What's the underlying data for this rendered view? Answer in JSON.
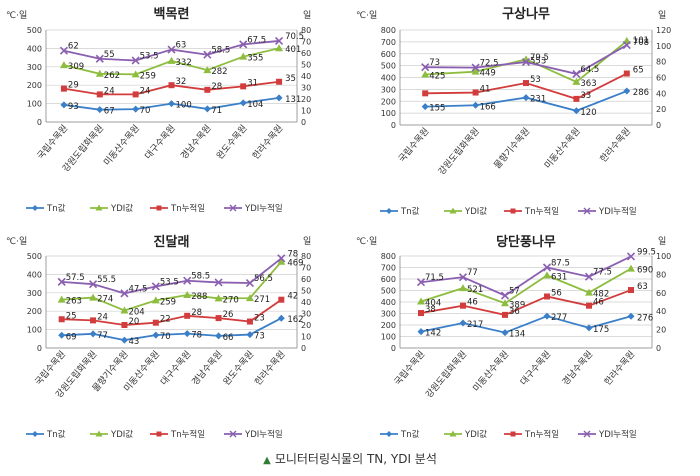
{
  "caption": "모니터터링식물의 TN, YDI 분석",
  "chart_data": [
    {
      "type": "line",
      "title": "백목련",
      "y1label": "℃·일",
      "y2label": "일",
      "y1lim": [
        0,
        500
      ],
      "y2lim": [
        0,
        80
      ],
      "y1ticks": [
        0,
        100,
        200,
        300,
        400,
        500
      ],
      "y2ticks": [
        0,
        10,
        20,
        30,
        40,
        50,
        60,
        70,
        80
      ],
      "categories": [
        "국립수목원",
        "강원도립화목원",
        "미동산수목원",
        "대구수목원",
        "경남수목원",
        "완도수목원",
        "한라수목원"
      ],
      "series": [
        {
          "name": "Tn값",
          "axis": "left",
          "color": "#3a7fc8",
          "marker": "diamond",
          "values": [
            93,
            67,
            70,
            100,
            71,
            104,
            131
          ]
        },
        {
          "name": "YDI값",
          "axis": "left",
          "color": "#8dbd3e",
          "marker": "triangle",
          "values": [
            309,
            262,
            259,
            332,
            282,
            355,
            401
          ]
        },
        {
          "name": "Tn누적일",
          "axis": "right",
          "color": "#d23c3c",
          "marker": "square",
          "values": [
            29,
            24,
            24,
            32,
            28,
            31,
            35
          ]
        },
        {
          "name": "YDI누적일",
          "axis": "right",
          "color": "#8a5fb0",
          "marker": "x",
          "values": [
            62,
            55,
            53.5,
            63,
            58.5,
            67.5,
            70.5
          ]
        }
      ],
      "labels": [
        [
          "93",
          "67",
          "70",
          "100",
          "71",
          "104",
          "131"
        ],
        [
          "309",
          "262",
          "259",
          "332",
          "282",
          "355",
          "401"
        ],
        [
          "29",
          "24",
          "24",
          "32",
          "28",
          "31",
          "35"
        ],
        [
          "62",
          "55",
          "53.5",
          "63",
          "58.5",
          "67.5",
          "70.5"
        ]
      ]
    },
    {
      "type": "line",
      "title": "구상나무",
      "y1label": "℃·일",
      "y2label": "일",
      "y1lim": [
        0,
        800
      ],
      "y2lim": [
        0,
        120
      ],
      "y1ticks": [
        0,
        100,
        200,
        300,
        400,
        500,
        600,
        700,
        800
      ],
      "y2ticks": [
        0,
        20,
        40,
        60,
        80,
        100,
        120
      ],
      "categories": [
        "국립수목원",
        "강원도립화목원",
        "물향기수목원",
        "미동산수목원",
        "한라수목원"
      ],
      "series": [
        {
          "name": "Tn값",
          "axis": "left",
          "color": "#3a7fc8",
          "marker": "diamond",
          "values": [
            155,
            166,
            231,
            120,
            286
          ]
        },
        {
          "name": "YDI값",
          "axis": "left",
          "color": "#8dbd3e",
          "marker": "triangle",
          "values": [
            425,
            449,
            553,
            363,
            708
          ]
        },
        {
          "name": "Tn누적일",
          "axis": "right",
          "color": "#d23c3c",
          "marker": "square",
          "values": [
            40,
            41,
            53,
            33,
            65
          ]
        },
        {
          "name": "YDI누적일",
          "axis": "right",
          "color": "#8a5fb0",
          "marker": "x",
          "values": [
            73,
            72.5,
            79.5,
            64.5,
            101
          ]
        }
      ],
      "labels": [
        [
          "155",
          "166",
          "231",
          "120",
          "286"
        ],
        [
          "425",
          "449",
          "553",
          "363",
          "708"
        ],
        [
          "",
          "41",
          "53",
          "33",
          "65"
        ],
        [
          "73",
          "72.5",
          "79.5",
          "64.5",
          "101"
        ]
      ]
    },
    {
      "type": "line",
      "title": "진달래",
      "y1label": "℃·일",
      "y2label": "일",
      "y1lim": [
        0,
        500
      ],
      "y2lim": [
        0,
        80
      ],
      "y1ticks": [
        0,
        100,
        200,
        300,
        400,
        500
      ],
      "y2ticks": [
        0,
        10,
        20,
        30,
        40,
        50,
        60,
        70,
        80
      ],
      "categories": [
        "국립수목원",
        "강원도립화목원",
        "물향기수목원",
        "미동산수목원",
        "대구수목원",
        "경남수목원",
        "완도수목원",
        "한라수목원"
      ],
      "series": [
        {
          "name": "Tn값",
          "axis": "left",
          "color": "#3a7fc8",
          "marker": "diamond",
          "values": [
            69,
            77,
            43,
            70,
            78,
            66,
            73,
            162
          ]
        },
        {
          "name": "YDI값",
          "axis": "left",
          "color": "#8dbd3e",
          "marker": "triangle",
          "values": [
            263,
            274,
            204,
            259,
            288,
            270,
            271,
            469
          ]
        },
        {
          "name": "Tn누적일",
          "axis": "right",
          "color": "#d23c3c",
          "marker": "square",
          "values": [
            25,
            24,
            20,
            22,
            28,
            26,
            23,
            42
          ]
        },
        {
          "name": "YDI누적일",
          "axis": "right",
          "color": "#8a5fb0",
          "marker": "x",
          "values": [
            57.5,
            55.5,
            47.5,
            53.5,
            58.5,
            57,
            56.5,
            78
          ]
        }
      ],
      "labels": [
        [
          "69",
          "77",
          "43",
          "70",
          "78",
          "66",
          "73",
          "162"
        ],
        [
          "263",
          "274",
          "204",
          "259",
          "288",
          "270",
          "271",
          "469"
        ],
        [
          "25",
          "24",
          "20",
          "22",
          "28",
          "26",
          "23",
          "42"
        ],
        [
          "57.5",
          "55.5",
          "47.5",
          "53.5",
          "58.5",
          "",
          "56.5",
          "78"
        ]
      ]
    },
    {
      "type": "line",
      "title": "당단풍나무",
      "y1label": "℃·일",
      "y2label": "일",
      "y1lim": [
        0,
        800
      ],
      "y2lim": [
        0,
        100
      ],
      "y1ticks": [
        0,
        100,
        200,
        300,
        400,
        500,
        600,
        700,
        800
      ],
      "y2ticks": [
        0,
        20,
        40,
        60,
        80,
        100
      ],
      "categories": [
        "국립수목원",
        "강원도립화목원",
        "미동산수목원",
        "대구수목원",
        "경남수목원",
        "한라수목원"
      ],
      "series": [
        {
          "name": "Tn값",
          "axis": "left",
          "color": "#3a7fc8",
          "marker": "diamond",
          "values": [
            142,
            217,
            134,
            277,
            175,
            276
          ]
        },
        {
          "name": "YDI값",
          "axis": "left",
          "color": "#8dbd3e",
          "marker": "triangle",
          "values": [
            404,
            521,
            389,
            631,
            482,
            690
          ]
        },
        {
          "name": "Tn누적일",
          "axis": "right",
          "color": "#d23c3c",
          "marker": "square",
          "values": [
            38,
            46,
            36,
            56,
            46,
            63
          ]
        },
        {
          "name": "YDI누적일",
          "axis": "right",
          "color": "#8a5fb0",
          "marker": "x",
          "values": [
            71.5,
            77,
            57,
            87.5,
            77.5,
            99.5
          ]
        }
      ],
      "labels": [
        [
          "142",
          "217",
          "134",
          "277",
          "175",
          "276"
        ],
        [
          "404",
          "521",
          "389",
          "631",
          "482",
          "690"
        ],
        [
          "38",
          "46",
          "36",
          "56",
          "46",
          "63"
        ],
        [
          "71.5",
          "77",
          "57",
          "87.5",
          "77.5",
          "99.5"
        ]
      ]
    }
  ]
}
